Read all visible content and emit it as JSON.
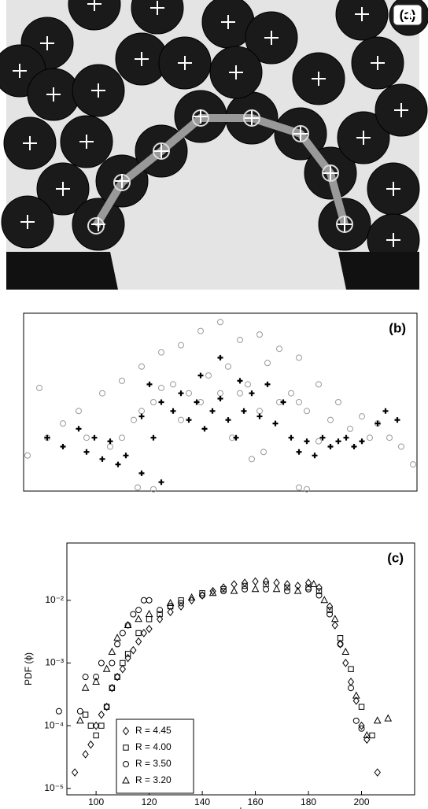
{
  "chart_data": [
    {
      "type": "image",
      "label": "(a)"
    },
    {
      "type": "scatter",
      "label": "(b)",
      "xlim": [
        0,
        1
      ],
      "ylim": [
        0,
        1
      ],
      "series": [
        {
          "marker": "circle",
          "color": "#999999",
          "x": [
            0.01,
            0.04,
            0.06,
            0.1,
            0.14,
            0.16,
            0.2,
            0.22,
            0.25,
            0.28,
            0.3,
            0.33,
            0.35,
            0.38,
            0.4,
            0.42,
            0.45,
            0.47,
            0.5,
            0.52,
            0.55,
            0.57,
            0.6,
            0.62,
            0.65,
            0.68,
            0.7,
            0.72,
            0.75,
            0.78,
            0.8,
            0.83,
            0.86,
            0.88,
            0.9,
            0.93,
            0.96,
            0.99,
            0.3,
            0.45,
            0.55,
            0.7,
            0.6,
            0.4,
            0.5,
            0.35,
            0.65,
            0.25,
            0.75,
            0.61,
            0.58,
            0.29,
            0.33,
            0.7,
            0.72,
            0.53
          ],
          "y": [
            0.2,
            0.58,
            0.3,
            0.38,
            0.45,
            0.3,
            0.55,
            0.25,
            0.62,
            0.4,
            0.7,
            0.5,
            0.78,
            0.6,
            0.82,
            0.55,
            0.9,
            0.65,
            0.95,
            0.7,
            0.85,
            0.6,
            0.88,
            0.72,
            0.8,
            0.55,
            0.75,
            0.45,
            0.6,
            0.4,
            0.5,
            0.35,
            0.42,
            0.3,
            0.38,
            0.3,
            0.25,
            0.15,
            0.45,
            0.5,
            0.55,
            0.5,
            0.45,
            0.4,
            0.55,
            0.58,
            0.5,
            0.3,
            0.28,
            0.22,
            0.18,
            0.02,
            0.01,
            0.02,
            0.01,
            0.3
          ]
        },
        {
          "marker": "cross",
          "color": "#000000",
          "x": [
            0.06,
            0.1,
            0.14,
            0.16,
            0.18,
            0.2,
            0.22,
            0.24,
            0.26,
            0.3,
            0.32,
            0.35,
            0.38,
            0.4,
            0.42,
            0.44,
            0.46,
            0.48,
            0.5,
            0.52,
            0.54,
            0.56,
            0.58,
            0.6,
            0.62,
            0.64,
            0.66,
            0.68,
            0.7,
            0.72,
            0.74,
            0.76,
            0.78,
            0.8,
            0.82,
            0.84,
            0.86,
            0.9,
            0.92,
            0.95,
            0.3,
            0.45,
            0.5,
            0.55,
            0.35,
            0.33
          ],
          "y": [
            0.3,
            0.25,
            0.35,
            0.22,
            0.3,
            0.18,
            0.28,
            0.15,
            0.2,
            0.42,
            0.6,
            0.5,
            0.45,
            0.55,
            0.4,
            0.5,
            0.35,
            0.45,
            0.52,
            0.4,
            0.3,
            0.45,
            0.55,
            0.42,
            0.6,
            0.38,
            0.5,
            0.3,
            0.22,
            0.28,
            0.2,
            0.3,
            0.25,
            0.28,
            0.3,
            0.25,
            0.28,
            0.38,
            0.45,
            0.4,
            0.1,
            0.65,
            0.75,
            0.62,
            0.05,
            0.3
          ]
        }
      ]
    },
    {
      "type": "scatter",
      "label": "(c)",
      "log_y": true,
      "ylabel": "PDF (ϕ)",
      "xlabel": "ϕ",
      "xlim": [
        89,
        220
      ],
      "ylim": [
        7.9e-06,
        0.082
      ],
      "xticks": [
        100,
        120,
        140,
        160,
        180,
        200
      ],
      "yticks": [
        {
          "value": 1e-05,
          "label": "10⁻⁵"
        },
        {
          "value": 0.0001,
          "label": "10⁻⁴"
        },
        {
          "value": 0.001,
          "label": "10⁻³"
        },
        {
          "value": 0.01,
          "label": "10⁻²"
        }
      ],
      "legend": "lower left",
      "series": [
        {
          "name": "R = 4.45",
          "marker": "diamond",
          "color": "#000000",
          "x": [
            92,
            96,
            98,
            100,
            102,
            104,
            106,
            108,
            110,
            112,
            114,
            116,
            118,
            120,
            124,
            128,
            132,
            136,
            140,
            144,
            148,
            152,
            156,
            160,
            164,
            168,
            172,
            176,
            180,
            184,
            188,
            190,
            192,
            194,
            196,
            198,
            200,
            202,
            206
          ],
          "values": [
            1.8e-05,
            3.5e-05,
            5e-05,
            0.0001,
            0.00015,
            0.0002,
            0.0004,
            0.0006,
            0.0008,
            0.0012,
            0.0016,
            0.0022,
            0.003,
            0.0035,
            0.005,
            0.0065,
            0.008,
            0.01,
            0.012,
            0.014,
            0.016,
            0.018,
            0.019,
            0.02,
            0.02,
            0.019,
            0.018,
            0.017,
            0.019,
            0.016,
            0.008,
            0.004,
            0.002,
            0.001,
            0.0005,
            0.00025,
            0.0001,
            6e-05,
            1.8e-05
          ]
        },
        {
          "name": "R = 4.00",
          "marker": "square",
          "color": "#000000",
          "x": [
            96,
            98,
            100,
            102,
            104,
            106,
            108,
            110,
            112,
            116,
            120,
            124,
            128,
            132,
            140,
            148,
            156,
            164,
            172,
            180,
            184,
            188,
            192,
            196,
            200,
            204
          ],
          "values": [
            0.00015,
            0.0001,
            7e-05,
            0.0001,
            0.0002,
            0.0004,
            0.0006,
            0.001,
            0.0014,
            0.003,
            0.005,
            0.006,
            0.008,
            0.01,
            0.013,
            0.015,
            0.017,
            0.018,
            0.016,
            0.016,
            0.014,
            0.007,
            0.0025,
            0.0008,
            0.0002,
            7e-05
          ]
        },
        {
          "name": "R = 3.50",
          "marker": "circle",
          "color": "#000000",
          "x": [
            86,
            94,
            96,
            100,
            102,
            106,
            108,
            110,
            112,
            114,
            116,
            118,
            120,
            124,
            128,
            132,
            140,
            148,
            156,
            164,
            172,
            180,
            184,
            188,
            192,
            196,
            198,
            200
          ],
          "values": [
            0.00017,
            0.00017,
            0.0006,
            0.0006,
            0.001,
            0.001,
            0.002,
            0.003,
            0.004,
            0.006,
            0.007,
            0.01,
            0.01,
            0.007,
            0.008,
            0.009,
            0.012,
            0.014,
            0.015,
            0.015,
            0.014,
            0.015,
            0.012,
            0.006,
            0.002,
            0.0004,
            0.00012,
            9e-05
          ]
        },
        {
          "name": "R = 3.20",
          "marker": "triangle",
          "color": "#000000",
          "x": [
            94,
            96,
            100,
            104,
            106,
            108,
            112,
            116,
            120,
            128,
            136,
            144,
            152,
            160,
            168,
            176,
            182,
            186,
            190,
            194,
            198,
            202,
            206,
            210
          ],
          "values": [
            0.00012,
            0.0004,
            0.0005,
            0.0008,
            0.0015,
            0.0025,
            0.004,
            0.005,
            0.006,
            0.009,
            0.011,
            0.013,
            0.014,
            0.015,
            0.015,
            0.014,
            0.018,
            0.01,
            0.005,
            0.0015,
            0.0003,
            7e-05,
            0.00012,
            0.00013
          ]
        }
      ]
    }
  ]
}
